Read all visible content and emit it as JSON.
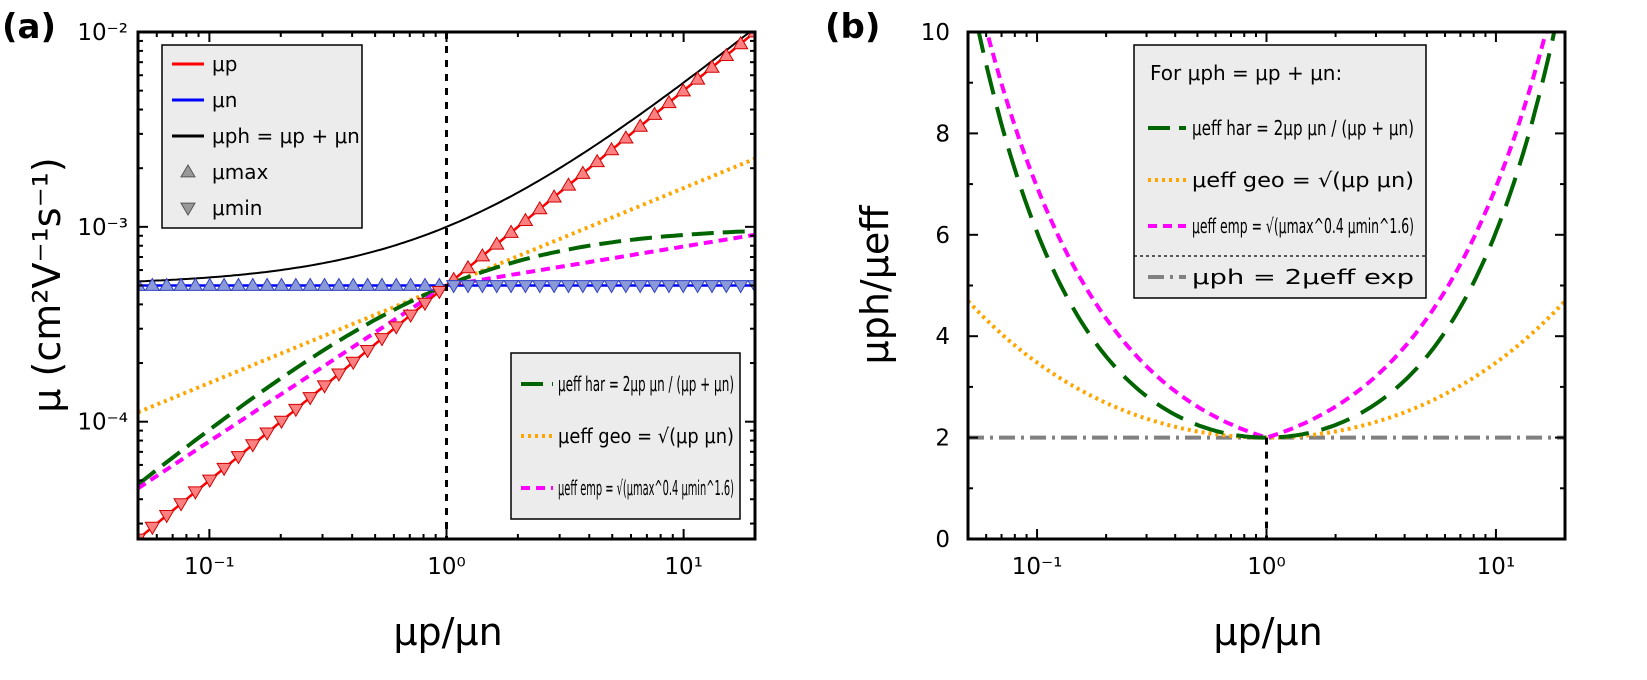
{
  "figure": {
    "panel_a_label": "(a)",
    "panel_b_label": "(b)"
  },
  "chart_data": [
    {
      "panel": "(a)",
      "type": "line",
      "xscale": "log",
      "yscale": "log",
      "xlim": [
        0.05,
        20
      ],
      "ylim": [
        2.5e-05,
        0.01
      ],
      "xlabel": "μp/μn",
      "ylabel": "μ (cm²V⁻¹s⁻¹)",
      "xticks": [
        "10⁻¹",
        "10⁰",
        "10¹"
      ],
      "yticks": [
        "10⁻⁴",
        "10⁻³",
        "10⁻²"
      ],
      "vline_x": 1,
      "legend_top": [
        {
          "name": "μp",
          "style": "solid",
          "color": "#ff0000"
        },
        {
          "name": "μn",
          "style": "solid",
          "color": "#0000ff"
        },
        {
          "name": "μph = μp + μn",
          "style": "solid",
          "color": "#000000"
        },
        {
          "name": "μmax",
          "style": "triangle-up",
          "color": "#888888"
        },
        {
          "name": "μmin",
          "style": "triangle-down",
          "color": "#888888"
        }
      ],
      "legend_bottom": [
        {
          "name": "μeff har = 2μp μn / (μp + μn)",
          "style": "dash",
          "color": "#006400"
        },
        {
          "name": "μeff geo = √(μp μn)",
          "style": "dot",
          "color": "#ffa500"
        },
        {
          "name": "μeff emp = √(μmax^0.4 μmin^1.6)",
          "style": "shortdash",
          "color": "#ff00ff"
        }
      ],
      "legend_placement": [
        "top-left",
        "bottom-right"
      ],
      "mu_n": 0.0005,
      "series": [
        {
          "name": "μp",
          "color": "#ff0000",
          "x": [
            0.05,
            0.1,
            1,
            10,
            20
          ],
          "y": [
            2.5e-05,
            5e-05,
            0.0005,
            0.005,
            0.01
          ]
        },
        {
          "name": "μn",
          "color": "#0000ff",
          "x": [
            0.05,
            1,
            20
          ],
          "y": [
            0.0005,
            0.0005,
            0.0005
          ]
        },
        {
          "name": "μph = μp + μn",
          "color": "#000000",
          "x": [
            0.05,
            0.1,
            1,
            10,
            20
          ],
          "y": [
            0.000525,
            0.00055,
            0.001,
            0.0055,
            0.0105
          ]
        },
        {
          "name": "μeff har",
          "color": "#006400",
          "x": [
            0.05,
            0.1,
            1,
            10,
            20
          ],
          "y": [
            4.76e-05,
            9.09e-05,
            0.0005,
            0.000909,
            0.000952
          ]
        },
        {
          "name": "μeff geo",
          "color": "#ffa500",
          "x": [
            0.05,
            0.1,
            1,
            10,
            20
          ],
          "y": [
            0.000112,
            0.000158,
            0.0005,
            0.00158,
            0.00224
          ]
        },
        {
          "name": "μeff emp",
          "color": "#ff00ff",
          "x": [
            0.05,
            0.1,
            1,
            10,
            20
          ],
          "y": [
            4.53e-05,
            7.92e-05,
            0.0005,
            0.000792,
            0.000905
          ]
        }
      ]
    },
    {
      "panel": "(b)",
      "type": "line",
      "xscale": "log",
      "yscale": "linear",
      "xlim": [
        0.05,
        20
      ],
      "ylim": [
        0,
        10
      ],
      "xlabel": "μp/μn",
      "ylabel": "μph/μeff",
      "xticks": [
        "10⁻¹",
        "10⁰",
        "10¹"
      ],
      "yticks": [
        "0",
        "2",
        "4",
        "6",
        "8",
        "10"
      ],
      "vline_x": 1,
      "legend_header": "For μph = μp + μn:",
      "legend": [
        {
          "name": "μeff har = 2μp μn / (μp + μn)",
          "style": "dash",
          "color": "#006400"
        },
        {
          "name": "μeff geo = √(μp μn)",
          "style": "dot",
          "color": "#ffa500"
        },
        {
          "name": "μeff emp = √(μmax^0.4 μmin^1.6)",
          "style": "shortdash",
          "color": "#ff00ff"
        },
        {
          "name": "μph = 2μeff exp",
          "style": "dashdot",
          "color": "#808080"
        }
      ],
      "legend_placement": "top-center",
      "series": [
        {
          "name": "μph/μeff har",
          "color": "#006400",
          "x": [
            0.06,
            0.1,
            0.5,
            1,
            2,
            10,
            18
          ],
          "y": [
            9.84,
            6.05,
            2.25,
            2.0,
            2.25,
            6.05,
            9.84
          ]
        },
        {
          "name": "μph/μeff geo",
          "color": "#ffa500",
          "x": [
            0.05,
            0.1,
            0.5,
            1,
            2,
            10,
            20
          ],
          "y": [
            4.7,
            3.48,
            2.12,
            2.0,
            2.12,
            3.48,
            4.7
          ]
        },
        {
          "name": "μph/μeff emp",
          "color": "#ff00ff",
          "x": [
            0.065,
            0.1,
            0.5,
            1,
            2,
            10,
            16
          ],
          "y": [
            9.9,
            6.94,
            2.38,
            2.0,
            2.38,
            6.94,
            9.9
          ]
        },
        {
          "name": "μph = 2μeff exp",
          "color": "#808080",
          "x": [
            0.05,
            20
          ],
          "y": [
            2,
            2
          ]
        }
      ]
    }
  ]
}
